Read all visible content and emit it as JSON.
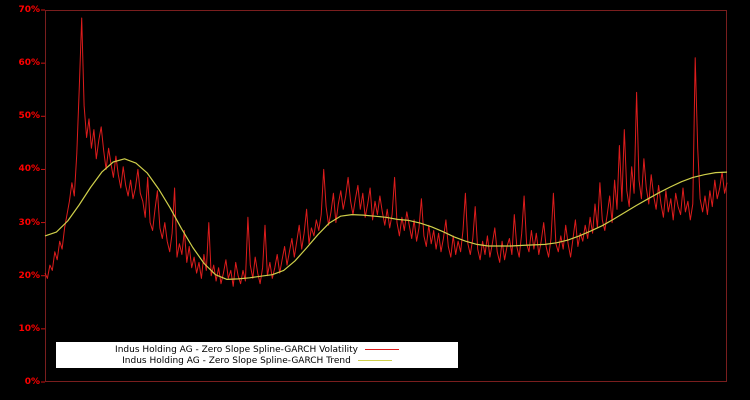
{
  "window": {
    "background": "#000000"
  },
  "chart_data": {
    "type": "line",
    "title": "",
    "xlabel": "",
    "ylabel": "",
    "ylim": [
      0,
      70
    ],
    "yticks": [
      0,
      10,
      20,
      30,
      40,
      50,
      60,
      70
    ],
    "ytick_suffix": "%",
    "grid": false,
    "legend_position": "bottom-inside",
    "frame_color": "#7a1e1e",
    "tick_color": "#cc1111",
    "label_color": "#ff0000",
    "legend_background": "#ffffff",
    "legend_text_color": "#000000",
    "series": [
      {
        "name": "Indus Holding AG - Zero Slope Spline-GARCH Volatility",
        "color": "#dd1c1c",
        "width": 1,
        "values": [
          20.5,
          19.5,
          22.0,
          21.0,
          24.5,
          23.0,
          26.5,
          25.0,
          29.0,
          31.5,
          34.0,
          37.5,
          35.0,
          43.0,
          55.0,
          68.5,
          52.0,
          46.0,
          49.5,
          44.0,
          47.5,
          42.0,
          45.5,
          48.0,
          43.5,
          40.0,
          44.0,
          41.0,
          38.5,
          42.5,
          39.0,
          36.5,
          40.5,
          37.0,
          35.0,
          38.0,
          34.5,
          36.5,
          40.0,
          35.5,
          34.0,
          31.0,
          38.5,
          30.0,
          28.5,
          32.5,
          36.0,
          29.0,
          27.0,
          30.0,
          26.5,
          24.5,
          28.0,
          36.5,
          23.5,
          26.0,
          24.0,
          28.5,
          22.5,
          25.5,
          21.5,
          23.5,
          20.5,
          22.5,
          19.5,
          24.0,
          21.0,
          30.0,
          20.0,
          22.0,
          19.0,
          21.5,
          18.5,
          20.5,
          23.0,
          19.5,
          21.0,
          18.0,
          22.5,
          20.0,
          18.5,
          21.0,
          19.0,
          31.0,
          22.0,
          19.5,
          23.5,
          20.5,
          18.5,
          21.5,
          29.5,
          20.0,
          22.5,
          19.5,
          21.5,
          24.0,
          20.5,
          23.0,
          25.5,
          22.0,
          24.5,
          27.0,
          23.5,
          26.5,
          29.5,
          25.0,
          28.0,
          32.5,
          26.0,
          29.0,
          27.5,
          30.5,
          28.5,
          31.5,
          40.0,
          33.0,
          29.5,
          32.0,
          35.5,
          30.0,
          33.5,
          36.0,
          32.5,
          35.0,
          38.5,
          34.0,
          31.5,
          34.5,
          37.0,
          32.5,
          35.5,
          31.0,
          33.5,
          36.5,
          30.5,
          34.0,
          31.5,
          35.0,
          32.0,
          29.5,
          32.5,
          29.0,
          31.5,
          38.5,
          30.0,
          27.5,
          31.0,
          28.5,
          32.0,
          29.5,
          27.0,
          30.5,
          26.5,
          29.0,
          34.5,
          27.5,
          25.5,
          29.5,
          26.0,
          28.5,
          25.0,
          28.0,
          24.5,
          27.0,
          30.5,
          25.5,
          23.5,
          27.5,
          24.0,
          26.5,
          24.5,
          28.5,
          35.5,
          26.0,
          24.0,
          27.0,
          33.0,
          25.0,
          23.0,
          26.5,
          24.0,
          27.5,
          23.5,
          26.0,
          29.0,
          24.5,
          22.5,
          26.5,
          23.0,
          25.5,
          27.0,
          24.0,
          31.5,
          25.5,
          23.5,
          28.0,
          35.0,
          26.0,
          24.5,
          28.5,
          25.0,
          28.0,
          24.0,
          26.5,
          30.0,
          25.5,
          23.5,
          27.0,
          35.5,
          26.0,
          24.5,
          27.5,
          25.0,
          29.5,
          26.0,
          23.5,
          27.0,
          30.5,
          25.5,
          28.0,
          26.5,
          29.5,
          27.0,
          31.0,
          28.0,
          33.5,
          29.0,
          37.5,
          30.5,
          28.5,
          31.5,
          35.0,
          30.0,
          38.0,
          32.5,
          44.5,
          34.0,
          47.5,
          36.0,
          33.0,
          40.5,
          35.5,
          54.5,
          38.0,
          34.5,
          42.0,
          36.5,
          33.5,
          39.0,
          35.0,
          32.5,
          37.0,
          33.5,
          31.0,
          36.0,
          32.0,
          34.5,
          30.5,
          35.5,
          33.0,
          31.5,
          36.5,
          32.0,
          34.0,
          30.5,
          33.5,
          61.0,
          44.0,
          34.5,
          32.0,
          35.0,
          31.5,
          36.0,
          33.0,
          38.0,
          34.5,
          36.5,
          39.5,
          35.5,
          37.5
        ]
      },
      {
        "name": "Indus Holding AG - Zero Slope Spline-GARCH Trend",
        "color": "#cfcf4a",
        "width": 1.2,
        "values": [
          27.5,
          28.2,
          30.3,
          33.3,
          36.6,
          39.5,
          41.4,
          42.0,
          41.2,
          39.3,
          36.3,
          32.8,
          28.9,
          25.3,
          22.3,
          20.2,
          19.3,
          19.4,
          19.6,
          19.9,
          20.2,
          21.0,
          22.8,
          25.2,
          27.7,
          29.9,
          31.2,
          31.5,
          31.4,
          31.2,
          31.0,
          30.6,
          30.4,
          29.9,
          29.2,
          28.3,
          27.3,
          26.5,
          25.9,
          25.6,
          25.6,
          25.6,
          25.7,
          25.8,
          25.9,
          26.2,
          26.7,
          27.5,
          28.4,
          29.4,
          30.6,
          31.9,
          33.2,
          34.4,
          35.6,
          36.7,
          37.7,
          38.5,
          39.0,
          39.4,
          39.5
        ]
      }
    ]
  }
}
